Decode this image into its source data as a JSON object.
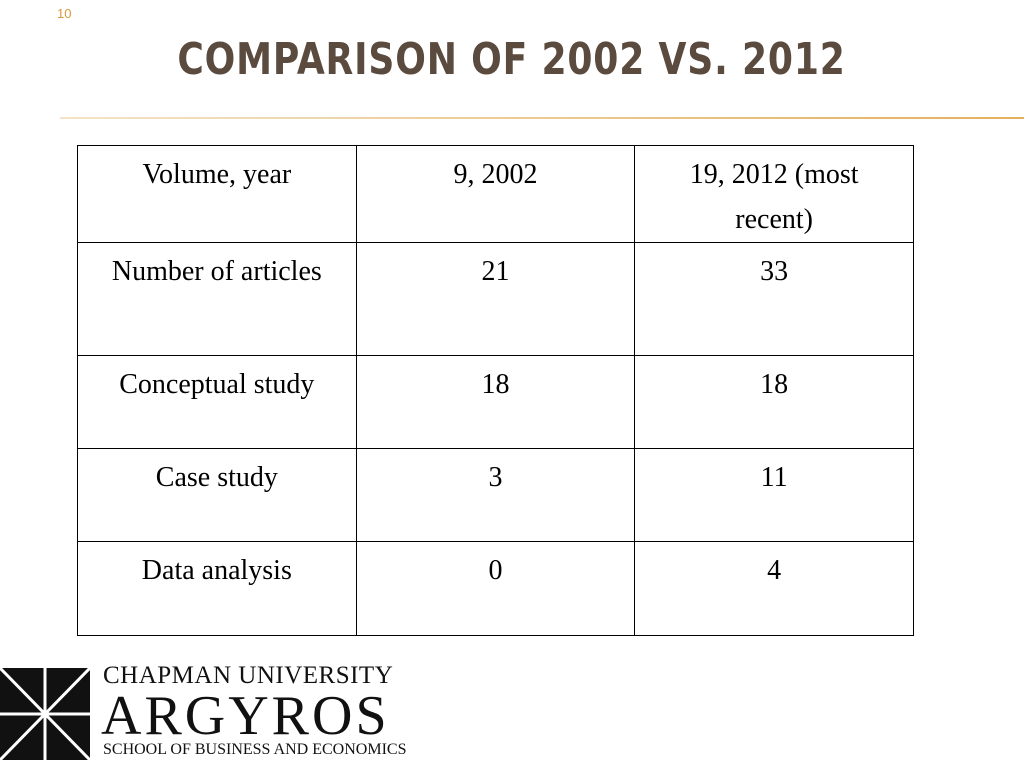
{
  "slide_number": "10",
  "title": "COMPARISON OF 2002 VS. 2012",
  "table": {
    "rows": [
      [
        "Volume, year",
        "9, 2002",
        "19, 2012 (most recent)"
      ],
      [
        "Number of articles",
        "21",
        "33"
      ],
      [
        "Conceptual study",
        "18",
        "18"
      ],
      [
        "Case study",
        "3",
        "11"
      ],
      [
        "Data analysis",
        "0",
        "4"
      ]
    ]
  },
  "logo": {
    "university": "CHAPMAN UNIVERSITY",
    "name": "ARGYROS",
    "school": "SCHOOL OF BUSINESS AND ECONOMICS"
  }
}
